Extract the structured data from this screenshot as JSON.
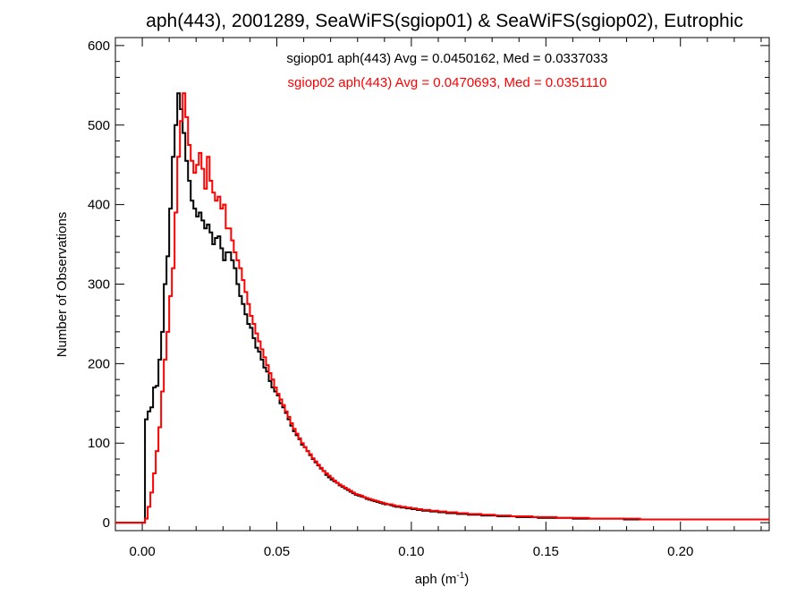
{
  "chart_data": {
    "type": "line",
    "title": "aph(443), 2001289, SeaWiFS(sgiop01) & SeaWiFS(sgiop02), Eutrophic",
    "xlabel": "aph (m",
    "xlabel_sup": "-1",
    "xlabel_suffix": ")",
    "ylabel": "Number of Observations",
    "xlim": [
      -0.01,
      0.233
    ],
    "ylim": [
      -10,
      610
    ],
    "x_ticks": [
      0.0,
      0.05,
      0.1,
      0.15,
      0.2
    ],
    "x_tick_labels": [
      "0.00",
      "0.05",
      "0.10",
      "0.15",
      "0.20"
    ],
    "y_ticks": [
      0,
      100,
      200,
      300,
      400,
      500,
      600
    ],
    "y_tick_labels": [
      "0",
      "100",
      "200",
      "300",
      "400",
      "500",
      "600"
    ],
    "grid": false,
    "step": 0.001,
    "annotations": [
      {
        "text": "sgiop01 aph(443) Avg = 0.0450162, Med = 0.0337033",
        "color": "#000000"
      },
      {
        "text": "sgiop02 aph(443) Avg = 0.0470693, Med = 0.0351110",
        "color": "#ff0000"
      }
    ],
    "series": [
      {
        "color": "#000000",
        "x0": -0.01,
        "values": [
          0,
          0,
          0,
          0,
          0,
          0,
          0,
          0,
          0,
          0,
          0,
          130,
          140,
          145,
          170,
          172,
          205,
          240,
          300,
          335,
          395,
          460,
          500,
          540,
          520,
          490,
          455,
          430,
          405,
          395,
          385,
          390,
          380,
          370,
          375,
          365,
          350,
          358,
          360,
          345,
          330,
          340,
          340,
          330,
          320,
          300,
          285,
          275,
          262,
          250,
          245,
          232,
          220,
          215,
          205,
          195,
          190,
          178,
          170,
          165,
          160,
          150,
          145,
          138,
          130,
          122,
          115,
          110,
          105,
          98,
          95,
          90,
          85,
          80,
          76,
          72,
          68,
          65,
          60,
          57,
          54,
          52,
          50,
          47,
          45,
          43,
          41,
          39,
          37,
          35,
          34,
          33,
          32,
          30,
          29,
          28,
          27,
          26,
          25,
          24,
          23,
          23,
          22,
          21,
          20,
          20,
          19,
          19,
          18,
          18,
          17,
          17,
          16,
          16,
          15,
          15,
          15,
          14,
          14,
          14,
          13,
          13,
          13,
          12,
          12,
          12,
          12,
          11,
          11,
          11,
          11,
          10,
          10,
          10,
          10,
          10,
          9,
          9,
          9,
          9,
          9,
          9,
          8,
          8,
          8,
          8,
          8,
          8,
          8,
          7,
          7,
          7,
          7,
          7,
          7,
          7,
          7,
          6,
          6,
          6,
          6,
          6,
          6,
          6,
          6,
          6,
          6,
          6,
          6,
          6,
          5,
          5,
          5,
          5,
          5,
          5,
          5,
          5,
          5,
          5,
          5,
          5,
          5,
          5,
          5,
          5,
          5,
          5,
          5,
          4,
          4,
          4,
          4,
          4,
          4,
          4,
          4,
          4,
          4,
          4,
          4,
          4,
          4,
          4,
          4,
          4,
          4,
          4,
          4,
          4,
          4,
          4,
          4,
          4,
          4,
          4,
          4,
          4,
          4,
          4,
          4,
          4,
          4,
          4,
          4,
          4,
          4,
          4,
          4,
          4,
          4,
          4,
          4,
          4,
          4,
          4,
          4,
          4,
          4,
          4,
          4,
          4,
          4,
          4,
          4,
          4,
          4
        ]
      },
      {
        "color": "#ff0000",
        "x0": -0.01,
        "values": [
          0,
          0,
          0,
          0,
          0,
          0,
          0,
          0,
          0,
          0,
          0,
          5,
          20,
          38,
          62,
          90,
          120,
          165,
          205,
          240,
          285,
          320,
          390,
          460,
          505,
          540,
          510,
          475,
          455,
          440,
          450,
          465,
          445,
          420,
          460,
          430,
          415,
          405,
          410,
          395,
          400,
          370,
          370,
          355,
          340,
          330,
          320,
          305,
          290,
          275,
          260,
          250,
          238,
          228,
          218,
          208,
          198,
          188,
          180,
          170,
          162,
          155,
          148,
          140,
          133,
          125,
          118,
          112,
          106,
          100,
          95,
          90,
          86,
          81,
          77,
          73,
          69,
          65,
          62,
          59,
          56,
          53,
          50,
          48,
          46,
          44,
          42,
          40,
          38,
          36,
          35,
          34,
          32,
          31,
          30,
          29,
          28,
          27,
          26,
          25,
          24,
          23,
          23,
          22,
          21,
          21,
          20,
          20,
          19,
          19,
          18,
          18,
          17,
          17,
          16,
          16,
          16,
          15,
          15,
          15,
          14,
          14,
          14,
          13,
          13,
          13,
          13,
          12,
          12,
          12,
          12,
          11,
          11,
          11,
          11,
          11,
          10,
          10,
          10,
          10,
          10,
          9,
          9,
          9,
          9,
          9,
          9,
          8,
          8,
          8,
          8,
          8,
          8,
          8,
          8,
          7,
          7,
          7,
          7,
          7,
          7,
          7,
          7,
          7,
          6,
          6,
          6,
          6,
          6,
          6,
          6,
          6,
          6,
          6,
          6,
          6,
          5,
          5,
          5,
          5,
          5,
          5,
          5,
          5,
          5,
          5,
          5,
          5,
          5,
          5,
          5,
          5,
          5,
          5,
          5,
          4,
          4,
          4,
          4,
          4,
          4,
          4,
          4,
          4,
          4,
          4,
          4,
          4,
          4,
          4,
          4,
          4,
          4,
          4,
          4,
          4,
          4,
          4,
          4,
          4,
          4,
          4,
          4,
          4,
          4,
          4,
          4,
          4,
          4,
          4,
          4,
          4,
          4,
          4,
          4,
          4,
          4,
          4,
          4,
          4,
          4,
          4,
          4,
          4,
          4,
          4,
          4,
          4
        ]
      }
    ]
  }
}
